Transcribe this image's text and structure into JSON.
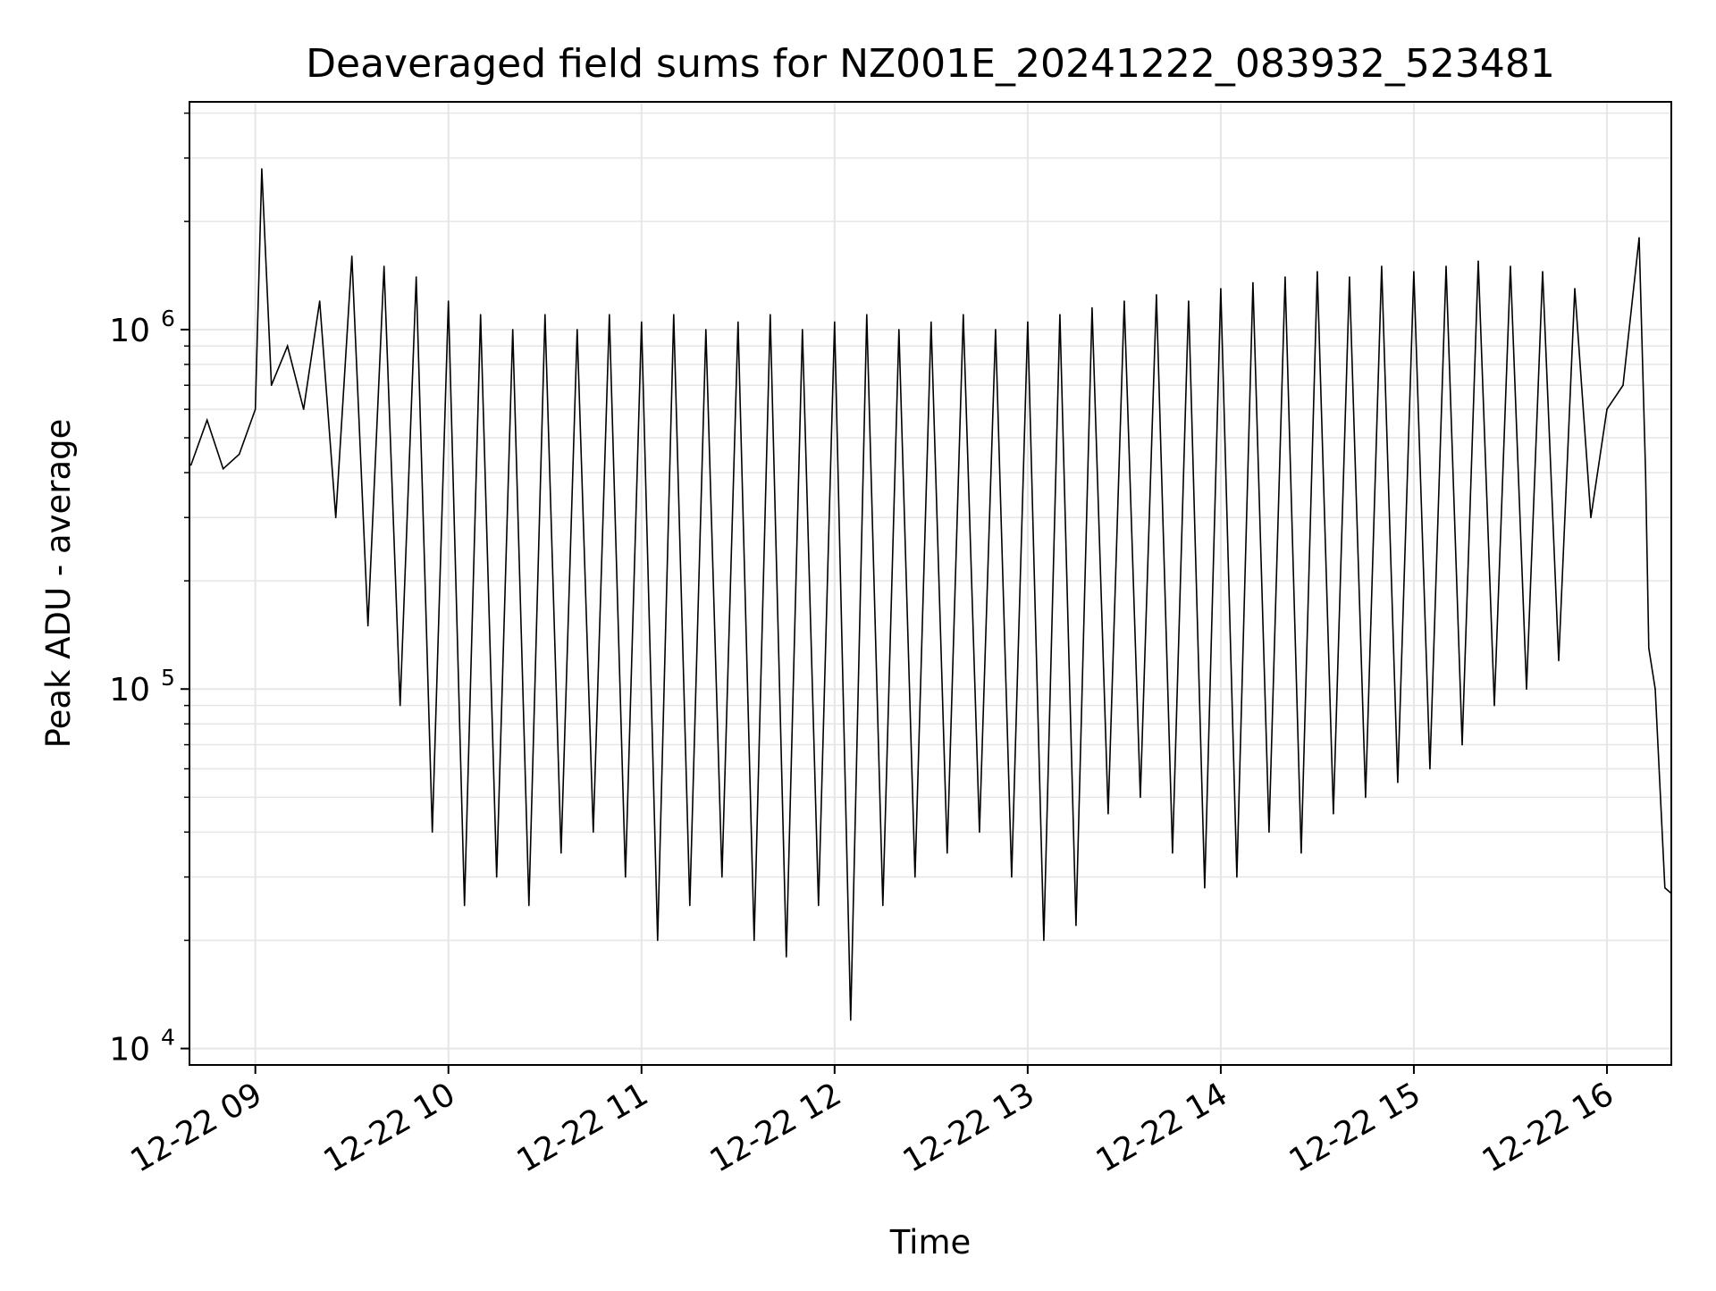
{
  "chart_data": {
    "type": "line",
    "title": "Deaveraged field sums for NZ001E_20241222_083932_523481",
    "xlabel": "Time",
    "ylabel": "Peak ADU - average",
    "xscale": "time",
    "yscale": "log",
    "xlim": [
      "2024-12-22 08:39:32",
      "2024-12-22 16:20:00"
    ],
    "ylim": [
      9000,
      4300000
    ],
    "x_ticks": [
      "12-22 09",
      "12-22 10",
      "12-22 11",
      "12-22 12",
      "12-22 13",
      "12-22 14",
      "12-22 15",
      "12-22 16"
    ],
    "y_ticks": [
      {
        "label_base": "10",
        "label_exp": "4",
        "value": 10000
      },
      {
        "label_base": "10",
        "label_exp": "5",
        "value": 100000
      },
      {
        "label_base": "10",
        "label_exp": "6",
        "value": 1000000
      }
    ],
    "grid": true,
    "line_color": "#000000",
    "grid_color": "#e6e6e6",
    "series": [
      {
        "points": [
          [
            "08:40",
            420000
          ],
          [
            "08:45",
            560000
          ],
          [
            "08:50",
            410000
          ],
          [
            "08:55",
            450000
          ],
          [
            "09:00",
            600000
          ],
          [
            "09:02",
            2800000
          ],
          [
            "09:05",
            700000
          ],
          [
            "09:10",
            900000
          ],
          [
            "09:15",
            600000
          ],
          [
            "09:20",
            1200000
          ],
          [
            "09:25",
            300000
          ],
          [
            "09:30",
            1600000
          ],
          [
            "09:35",
            150000
          ],
          [
            "09:40",
            1500000
          ],
          [
            "09:45",
            90000
          ],
          [
            "09:50",
            1400000
          ],
          [
            "09:55",
            40000
          ],
          [
            "10:00",
            1200000
          ],
          [
            "10:05",
            25000
          ],
          [
            "10:10",
            1100000
          ],
          [
            "10:15",
            30000
          ],
          [
            "10:20",
            1000000
          ],
          [
            "10:25",
            25000
          ],
          [
            "10:30",
            1100000
          ],
          [
            "10:35",
            35000
          ],
          [
            "10:40",
            1000000
          ],
          [
            "10:45",
            40000
          ],
          [
            "10:50",
            1100000
          ],
          [
            "10:55",
            30000
          ],
          [
            "11:00",
            1050000
          ],
          [
            "11:05",
            20000
          ],
          [
            "11:10",
            1100000
          ],
          [
            "11:15",
            25000
          ],
          [
            "11:20",
            1000000
          ],
          [
            "11:25",
            30000
          ],
          [
            "11:30",
            1050000
          ],
          [
            "11:35",
            20000
          ],
          [
            "11:40",
            1100000
          ],
          [
            "11:45",
            18000
          ],
          [
            "11:50",
            1000000
          ],
          [
            "11:55",
            25000
          ],
          [
            "12:00",
            1050000
          ],
          [
            "12:05",
            12000
          ],
          [
            "12:10",
            1100000
          ],
          [
            "12:15",
            25000
          ],
          [
            "12:20",
            1000000
          ],
          [
            "12:25",
            30000
          ],
          [
            "12:30",
            1050000
          ],
          [
            "12:35",
            35000
          ],
          [
            "12:40",
            1100000
          ],
          [
            "12:45",
            40000
          ],
          [
            "12:50",
            1000000
          ],
          [
            "12:55",
            30000
          ],
          [
            "13:00",
            1050000
          ],
          [
            "13:05",
            20000
          ],
          [
            "13:10",
            1100000
          ],
          [
            "13:15",
            22000
          ],
          [
            "13:20",
            1150000
          ],
          [
            "13:25",
            45000
          ],
          [
            "13:30",
            1200000
          ],
          [
            "13:35",
            50000
          ],
          [
            "13:40",
            1250000
          ],
          [
            "13:45",
            35000
          ],
          [
            "13:50",
            1200000
          ],
          [
            "13:55",
            28000
          ],
          [
            "14:00",
            1300000
          ],
          [
            "14:05",
            30000
          ],
          [
            "14:10",
            1350000
          ],
          [
            "14:15",
            40000
          ],
          [
            "14:20",
            1400000
          ],
          [
            "14:25",
            35000
          ],
          [
            "14:30",
            1450000
          ],
          [
            "14:35",
            45000
          ],
          [
            "14:40",
            1400000
          ],
          [
            "14:45",
            50000
          ],
          [
            "14:50",
            1500000
          ],
          [
            "14:55",
            55000
          ],
          [
            "15:00",
            1450000
          ],
          [
            "15:05",
            60000
          ],
          [
            "15:10",
            1500000
          ],
          [
            "15:15",
            70000
          ],
          [
            "15:20",
            1550000
          ],
          [
            "15:25",
            90000
          ],
          [
            "15:30",
            1500000
          ],
          [
            "15:35",
            100000
          ],
          [
            "15:40",
            1450000
          ],
          [
            "15:45",
            120000
          ],
          [
            "15:50",
            1300000
          ],
          [
            "15:55",
            300000
          ],
          [
            "16:00",
            600000
          ],
          [
            "16:05",
            700000
          ],
          [
            "16:10",
            1800000
          ],
          [
            "16:12",
            400000
          ],
          [
            "16:13",
            130000
          ],
          [
            "16:15",
            100000
          ],
          [
            "16:18",
            28000
          ],
          [
            "16:20",
            27000
          ]
        ]
      }
    ]
  }
}
